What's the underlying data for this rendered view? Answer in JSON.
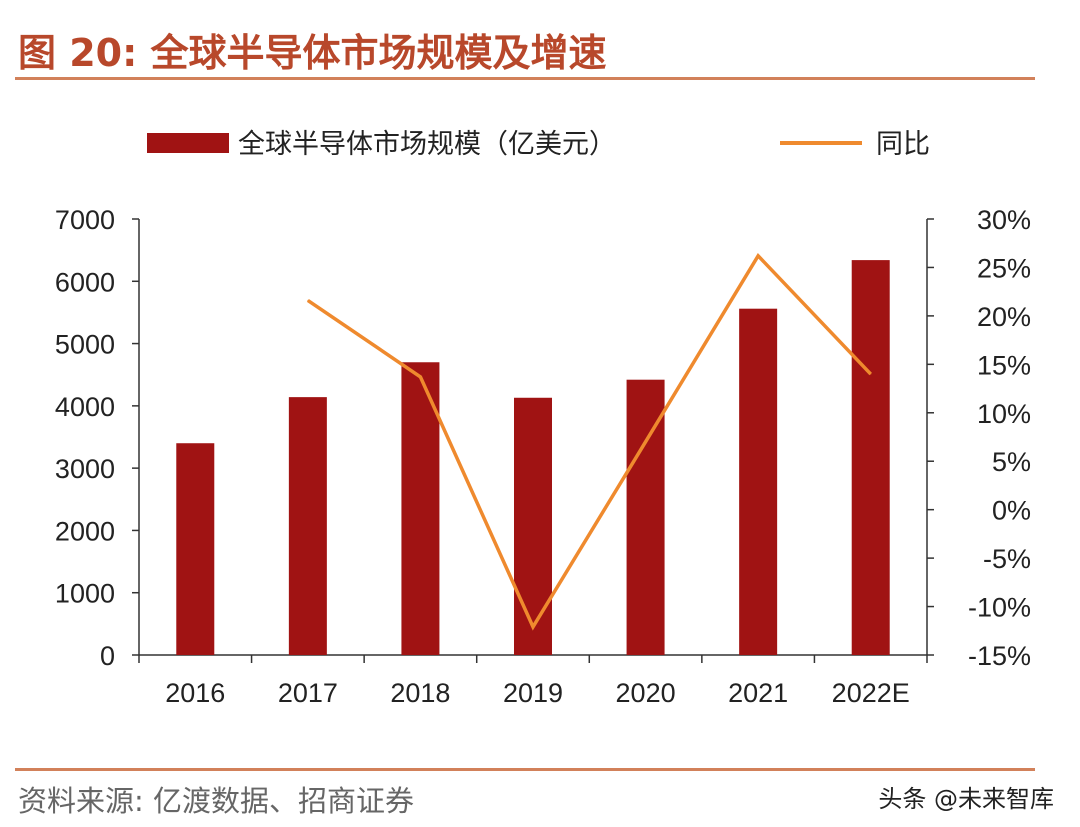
{
  "figure": {
    "title": "图 20:  全球半导体市场规模及增速",
    "source": "资料来源:  亿渡数据、招商证券",
    "watermark": "头条 @未来智库"
  },
  "colors": {
    "bar": "#a01313",
    "line": "#ef8a2e",
    "accent": "#b8482b",
    "rule": "#d2815a",
    "axis": "#333333"
  },
  "chart_data": {
    "type": "bar",
    "categories": [
      "2016",
      "2017",
      "2018",
      "2019",
      "2020",
      "2021",
      "2022E"
    ],
    "series": [
      {
        "name": "全球半导体市场规模（亿美元）",
        "type": "bar",
        "axis": "left",
        "values": [
          3400,
          4140,
          4700,
          4130,
          4420,
          5560,
          6340
        ]
      },
      {
        "name": "同比",
        "type": "line",
        "axis": "right",
        "values": [
          null,
          21.6,
          13.7,
          -12.1,
          7.0,
          26.2,
          14.0
        ]
      }
    ],
    "ylim": [
      0,
      7000
    ],
    "yticks": [
      "0",
      "1000",
      "2000",
      "3000",
      "4000",
      "5000",
      "6000",
      "7000"
    ],
    "y2lim": [
      -15,
      30
    ],
    "y2ticks": [
      "-15%",
      "-10%",
      "-5%",
      "0%",
      "5%",
      "10%",
      "15%",
      "20%",
      "25%",
      "30%"
    ],
    "legend_position": "top",
    "grid": false
  }
}
